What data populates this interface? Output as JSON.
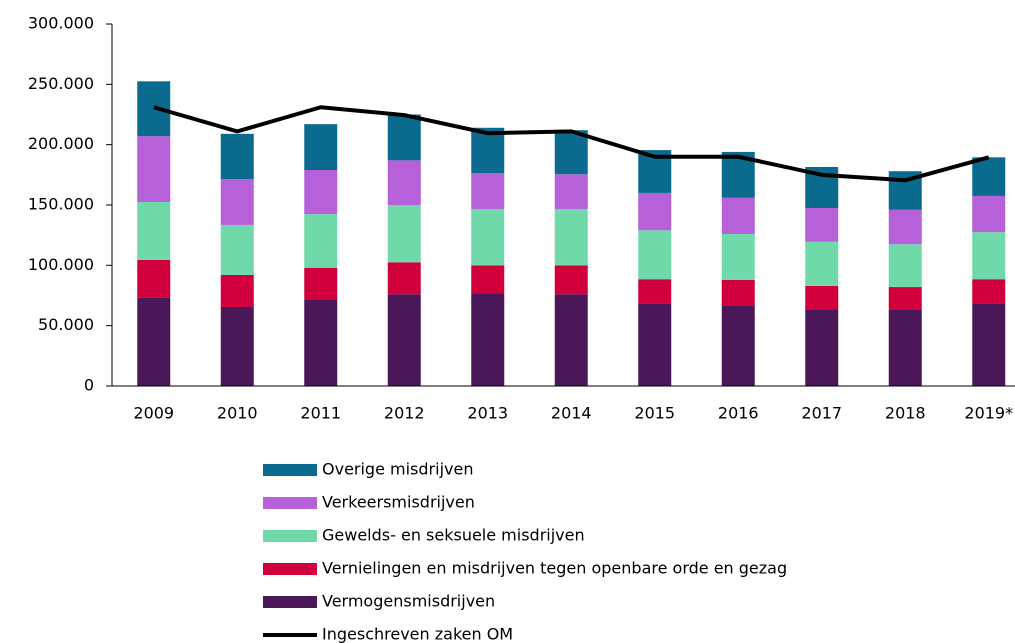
{
  "chart_data": {
    "type": "bar",
    "stacked": true,
    "categories": [
      "2009",
      "2010",
      "2011",
      "2012",
      "2013",
      "2014",
      "2015",
      "2016",
      "2017",
      "2018",
      "2019*"
    ],
    "series": [
      {
        "name": "Vermogensmisdrijven",
        "color": "#4a1759",
        "values": [
          73000,
          65500,
          72000,
          76000,
          77000,
          76000,
          68000,
          67000,
          63000,
          63000,
          68000
        ]
      },
      {
        "name": "Vernielingen en misdrijven tegen openbare orde en gezag",
        "color": "#d1003d",
        "values": [
          31500,
          26500,
          26000,
          26500,
          23000,
          24000,
          20500,
          21000,
          20000,
          19000,
          20500
        ]
      },
      {
        "name": "Gewelds- en seksuele misdrijven",
        "color": "#70d9aa",
        "values": [
          48000,
          41500,
          44500,
          47500,
          46500,
          46500,
          40500,
          38000,
          36500,
          35500,
          39000
        ]
      },
      {
        "name": "Verkeersmisdrijven",
        "color": "#b660d9",
        "values": [
          54500,
          38000,
          36500,
          37000,
          30000,
          29000,
          31000,
          30000,
          28000,
          28500,
          30000
        ]
      },
      {
        "name": "Overige misdrijven",
        "color": "#0a6b8e",
        "values": [
          45500,
          37500,
          38000,
          38000,
          37500,
          36500,
          35500,
          38000,
          34000,
          32000,
          32000
        ]
      },
      {
        "name": "Ingeschreven zaken OM",
        "type": "line",
        "color": "#000000",
        "values": [
          231000,
          211000,
          231000,
          224500,
          209500,
          211000,
          190000,
          190000,
          175000,
          170500,
          189500
        ]
      }
    ],
    "ylim": [
      0,
      300000
    ],
    "yticks": [
      0,
      {
        "value": 50000,
        "label": "50.000"
      },
      {
        "value": 100000,
        "label": "100.000"
      },
      {
        "value": 150000,
        "label": "150.000"
      },
      {
        "value": 200000,
        "label": "200.000"
      },
      {
        "value": 250000,
        "label": "250.000"
      },
      {
        "value": 300000,
        "label": "300.000"
      }
    ],
    "legend": "bottom"
  }
}
